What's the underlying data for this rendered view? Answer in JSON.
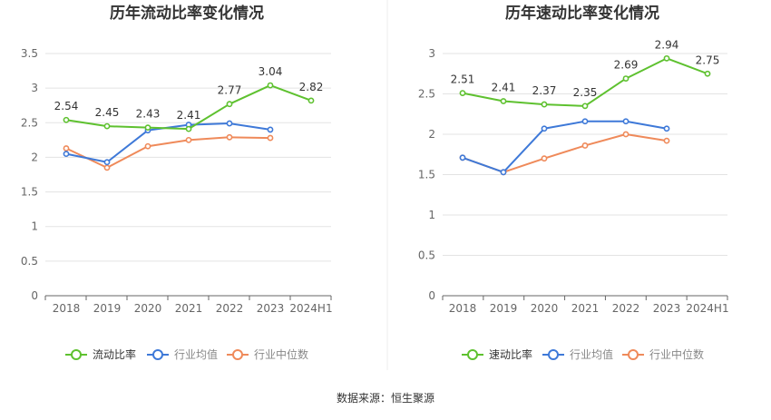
{
  "source_text": "数据来源：恒生聚源",
  "colors": {
    "series": [
      "#5ec12f",
      "#3e79d8",
      "#ef8a5a"
    ],
    "axis": "#666666",
    "grid": "#e3e3e3",
    "label": "#333333",
    "divider": "#eeeeee"
  },
  "chart_data": [
    {
      "type": "line",
      "title": "历年流动比率变化情况",
      "categories": [
        "2018",
        "2019",
        "2020",
        "2021",
        "2022",
        "2023",
        "2024H1"
      ],
      "ylim": [
        0,
        3.5
      ],
      "yticks": [
        "0",
        "0.5",
        "1",
        "1.5",
        "2",
        "2.5",
        "3",
        "3.5"
      ],
      "grid": true,
      "legend_position": "bottom",
      "series": [
        {
          "name": "流动比率",
          "values": [
            2.54,
            2.45,
            2.43,
            2.41,
            2.77,
            3.04,
            2.82
          ],
          "labels": [
            "2.54",
            "2.45",
            "2.43",
            "2.41",
            "2.77",
            "3.04",
            "2.82"
          ]
        },
        {
          "name": "行业均值",
          "values": [
            2.05,
            1.93,
            2.39,
            2.47,
            2.49,
            2.4,
            null
          ]
        },
        {
          "name": "行业中位数",
          "values": [
            2.13,
            1.85,
            2.16,
            2.25,
            2.29,
            2.28,
            null
          ]
        }
      ]
    },
    {
      "type": "line",
      "title": "历年速动比率变化情况",
      "categories": [
        "2018",
        "2019",
        "2020",
        "2021",
        "2022",
        "2023",
        "2024H1"
      ],
      "ylim": [
        0,
        3
      ],
      "yticks": [
        "0",
        "0.5",
        "1",
        "1.5",
        "2",
        "2.5",
        "3"
      ],
      "grid": true,
      "legend_position": "bottom",
      "series": [
        {
          "name": "速动比率",
          "values": [
            2.51,
            2.41,
            2.37,
            2.35,
            2.69,
            2.94,
            2.75
          ],
          "labels": [
            "2.51",
            "2.41",
            "2.37",
            "2.35",
            "2.69",
            "2.94",
            "2.75"
          ]
        },
        {
          "name": "行业均值",
          "values": [
            1.71,
            1.53,
            2.07,
            2.16,
            2.16,
            2.07,
            null
          ]
        },
        {
          "name": "行业中位数",
          "values": [
            1.71,
            1.53,
            1.7,
            1.86,
            2.0,
            1.92,
            null
          ]
        }
      ]
    }
  ]
}
